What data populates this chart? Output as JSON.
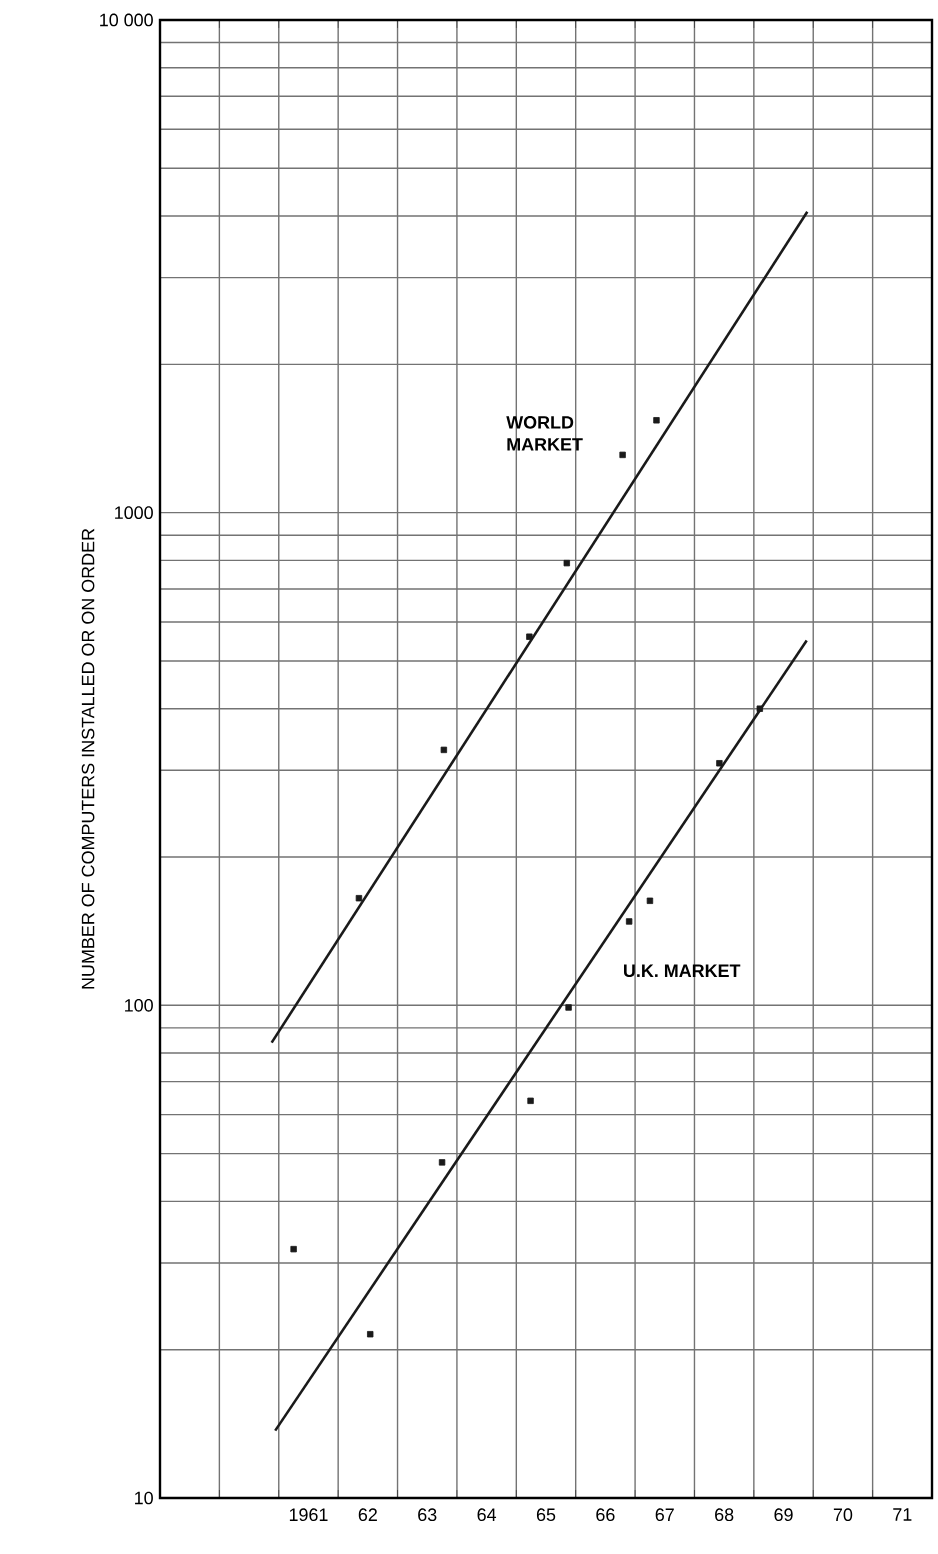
{
  "chart_data": {
    "type": "scatter",
    "ylabel": "NUMBER OF COMPUTERS INSTALLED OR ON ORDER",
    "xlim": [
      1958.5,
      1971.5
    ],
    "xticks": [
      {
        "value": 1959.5,
        "label": null
      },
      {
        "value": 1960.5,
        "label": null
      },
      {
        "value": 1961.5,
        "label": null
      },
      {
        "value": 1962.5,
        "label": null
      },
      {
        "value": 1963.5,
        "label": null
      },
      {
        "value": 1964.5,
        "label": null
      },
      {
        "value": 1965.5,
        "label": null
      },
      {
        "value": 1966.5,
        "label": null
      },
      {
        "value": 1967.5,
        "label": null
      },
      {
        "value": 1968.5,
        "label": null
      },
      {
        "value": 1969.5,
        "label": null
      },
      {
        "value": 1970.5,
        "label": null
      },
      {
        "value": 1961,
        "label": "1961"
      },
      {
        "value": 1962,
        "label": "62"
      },
      {
        "value": 1963,
        "label": "63"
      },
      {
        "value": 1964,
        "label": "64"
      },
      {
        "value": 1965,
        "label": "65"
      },
      {
        "value": 1966,
        "label": "66"
      },
      {
        "value": 1967,
        "label": "67"
      },
      {
        "value": 1968,
        "label": "68"
      },
      {
        "value": 1969,
        "label": "69"
      },
      {
        "value": 1970,
        "label": "70"
      },
      {
        "value": 1971,
        "label": "71"
      }
    ],
    "ylim": [
      10,
      10000
    ],
    "yticks": [
      10,
      100,
      1000,
      {
        "value": 10000,
        "label": "10 000"
      }
    ],
    "log": "y",
    "grid": true,
    "legend": false,
    "marker": "square",
    "line_style": "solid",
    "series": [
      {
        "name": "WORLD MARKET",
        "color": "#1a1a1a",
        "x": [
          1961.85,
          1963.28,
          1964.72,
          1965.35,
          1966.29,
          1966.86
        ],
        "values": [
          165,
          330,
          560,
          790,
          1310,
          1540
        ]
      },
      {
        "type": "line",
        "marker": "none",
        "color": "#1a1a1a",
        "x": [
          1960.38,
          1969.4
        ],
        "values": [
          84,
          4080
        ]
      },
      {
        "name": "U.K. MARKET",
        "color": "#1a1a1a",
        "x": [
          1960.75,
          1962.04,
          1963.25,
          1964.74,
          1965.38,
          1966.4,
          1966.75,
          1967.92,
          1968.6
        ],
        "values": [
          32,
          21.5,
          48,
          64,
          99,
          148,
          163,
          310,
          400
        ]
      },
      {
        "type": "line",
        "marker": "none",
        "color": "#1a1a1a",
        "x": [
          1960.44,
          1969.39
        ],
        "values": [
          13.7,
          550
        ]
      }
    ]
  }
}
